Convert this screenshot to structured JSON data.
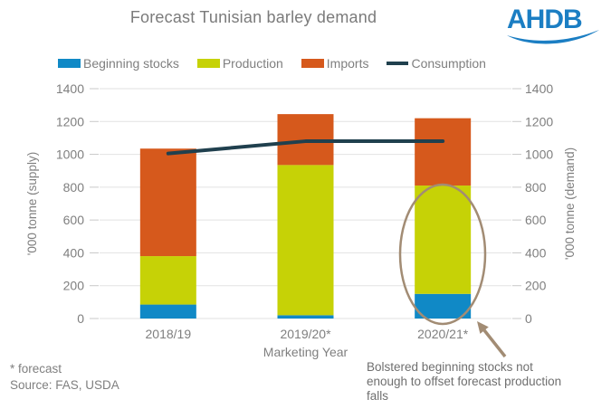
{
  "header": {
    "title": "Forecast Tunisian barley demand",
    "logo_text": "AHDB"
  },
  "chart_data": {
    "type": "bar",
    "subtype": "stacked-bars-with-line",
    "categories": [
      "2018/19",
      "2019/20*",
      "2020/21*"
    ],
    "series": [
      {
        "name": "Beginning stocks",
        "type": "bar",
        "color": "#1089c6",
        "values": [
          85,
          20,
          150
        ]
      },
      {
        "name": "Production",
        "type": "bar",
        "color": "#c6d206",
        "values": [
          295,
          915,
          660
        ]
      },
      {
        "name": "Imports",
        "type": "bar",
        "color": "#d6591c",
        "values": [
          655,
          310,
          410
        ]
      },
      {
        "name": "Consumption",
        "type": "line",
        "color": "#20404e",
        "values": [
          1005,
          1080,
          1080
        ]
      }
    ],
    "title": "Forecast Tunisian barley demand",
    "xlabel": "Marketing Year",
    "ylabel_left": "'000 tonne (supply)",
    "ylabel_right": "'000 tonne (demand)",
    "ylim": [
      0,
      1400
    ],
    "yticks": [
      0,
      200,
      400,
      600,
      800,
      1000,
      1200,
      1400
    ],
    "grid": true,
    "legend_position": "top"
  },
  "annotation": {
    "text": "Bolstered beginning stocks not\nenough to offset forecast production\nfalls",
    "color": "#a28c74"
  },
  "footer": {
    "forecast_note": "* forecast",
    "source": "Source: FAS, USDA"
  },
  "style": {
    "logo_blue": "#1b7ec3",
    "grid_color": "#e2e2e2",
    "tick_color": "#c8c8c8",
    "text_gray": "#7f7f7f"
  }
}
